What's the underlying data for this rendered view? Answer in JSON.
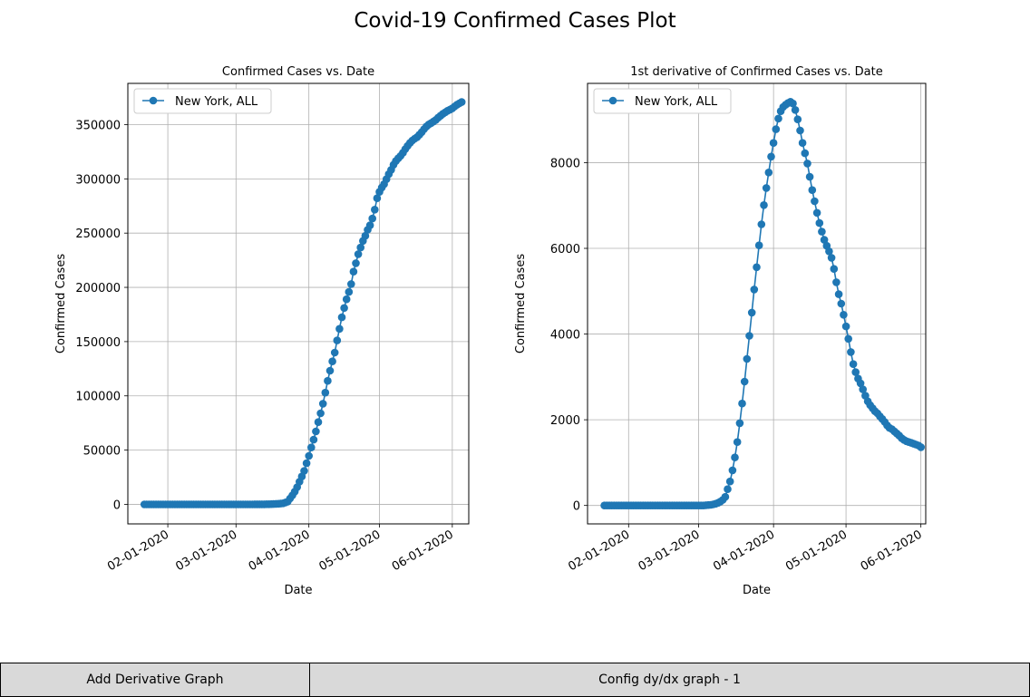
{
  "figure": {
    "suptitle": "Covid-19 Confirmed Cases Plot"
  },
  "footer": {
    "add_derivative_label": "Add Derivative Graph",
    "config_label": "Config dy/dx graph - 1"
  },
  "colors": {
    "series": "#1f77b4",
    "grid": "#b0b0b0",
    "footer_bg": "#d9d9d9"
  },
  "chart_data": [
    {
      "type": "line",
      "title": "Confirmed Cases vs. Date",
      "xlabel": "Date",
      "ylabel": "Confirmed Cases",
      "x_start": "2020-01-22",
      "x_end": "2020-05-31",
      "xlim": [
        "2020-01-15",
        "2020-06-08"
      ],
      "ylim": [
        -18000,
        388000
      ],
      "xticks": [
        "02-01-2020",
        "03-01-2020",
        "04-01-2020",
        "05-01-2020",
        "06-01-2020"
      ],
      "yticks": [
        0,
        50000,
        100000,
        150000,
        200000,
        250000,
        300000,
        350000
      ],
      "grid": true,
      "legend": "upper left",
      "marker": "circle",
      "series": [
        {
          "name": "New York, ALL",
          "values": [
            0,
            0,
            0,
            0,
            0,
            0,
            0,
            0,
            0,
            0,
            0,
            0,
            0,
            0,
            0,
            0,
            0,
            0,
            0,
            0,
            0,
            0,
            0,
            0,
            0,
            0,
            0,
            0,
            0,
            0,
            0,
            0,
            0,
            0,
            0,
            0,
            0,
            0,
            0,
            0,
            0,
            0,
            0,
            0,
            1,
            1,
            2,
            6,
            11,
            22,
            33,
            76,
            106,
            142,
            173,
            328,
            421,
            525,
            732,
            967,
            1706,
            2495,
            5365,
            8310,
            11710,
            15800,
            20884,
            25681,
            30841,
            37877,
            44635,
            52410,
            59648,
            67174,
            75832,
            83948,
            92770,
            102987,
            113833,
            123160,
            131815,
            139875,
            151061,
            161779,
            172348,
            181026,
            189033,
            195749,
            203020,
            214454,
            222284,
            230597,
            236732,
            242786,
            247512,
            253060,
            257216,
            263460,
            271590,
            282143,
            288045,
            291996,
            295106,
            299691,
            304372,
            308314,
            312977,
            316415,
            318953,
            321192,
            323978,
            327469,
            330407,
            333122,
            335395,
            337055,
            338485,
            340661,
            343051,
            345813,
            348232,
            350121,
            351371,
            352845,
            354370,
            356458,
            358154,
            359926,
            361313,
            362764,
            363836,
            364965,
            366733,
            368284,
            369660,
            370770
          ]
        }
      ]
    },
    {
      "type": "line",
      "title": "1st derivative of Confirmed Cases vs. Date",
      "xlabel": "Date",
      "ylabel": "Confirmed Cases",
      "x_start": "2020-01-22",
      "x_end": "2020-05-30",
      "xlim": [
        "2020-01-15",
        "2020-06-03"
      ],
      "ylim": [
        -430,
        9850
      ],
      "xticks": [
        "02-01-2020",
        "03-01-2020",
        "04-01-2020",
        "05-01-2020",
        "06-01-2020"
      ],
      "yticks": [
        0,
        2000,
        4000,
        6000,
        8000
      ],
      "grid": true,
      "legend": "upper left",
      "marker": "circle",
      "series": [
        {
          "name": "New York, ALL",
          "values": [
            0,
            0,
            0,
            0,
            0,
            0,
            0,
            0,
            0,
            0,
            0,
            0,
            0,
            0,
            0,
            0,
            0,
            0,
            0,
            0,
            0,
            0,
            0,
            0,
            0,
            0,
            0,
            0,
            0,
            0,
            0,
            0,
            0,
            0,
            0,
            0,
            0,
            0,
            0,
            0,
            0,
            0,
            5,
            10,
            15,
            25,
            40,
            60,
            90,
            130,
            200,
            380,
            560,
            820,
            1120,
            1480,
            1920,
            2380,
            2890,
            3420,
            3960,
            4500,
            5040,
            5560,
            6070,
            6560,
            7010,
            7410,
            7770,
            8140,
            8460,
            8780,
            9030,
            9200,
            9300,
            9350,
            9390,
            9420,
            9380,
            9230,
            9010,
            8750,
            8460,
            8220,
            7980,
            7670,
            7360,
            7100,
            6830,
            6590,
            6390,
            6200,
            6060,
            5930,
            5780,
            5520,
            5210,
            4930,
            4710,
            4450,
            4180,
            3890,
            3580,
            3300,
            3110,
            2960,
            2850,
            2710,
            2560,
            2430,
            2340,
            2270,
            2200,
            2150,
            2080,
            2020,
            1950,
            1870,
            1810,
            1780,
            1730,
            1680,
            1630,
            1570,
            1530,
            1500,
            1480,
            1460,
            1440,
            1420,
            1400,
            1360
          ]
        }
      ]
    }
  ]
}
